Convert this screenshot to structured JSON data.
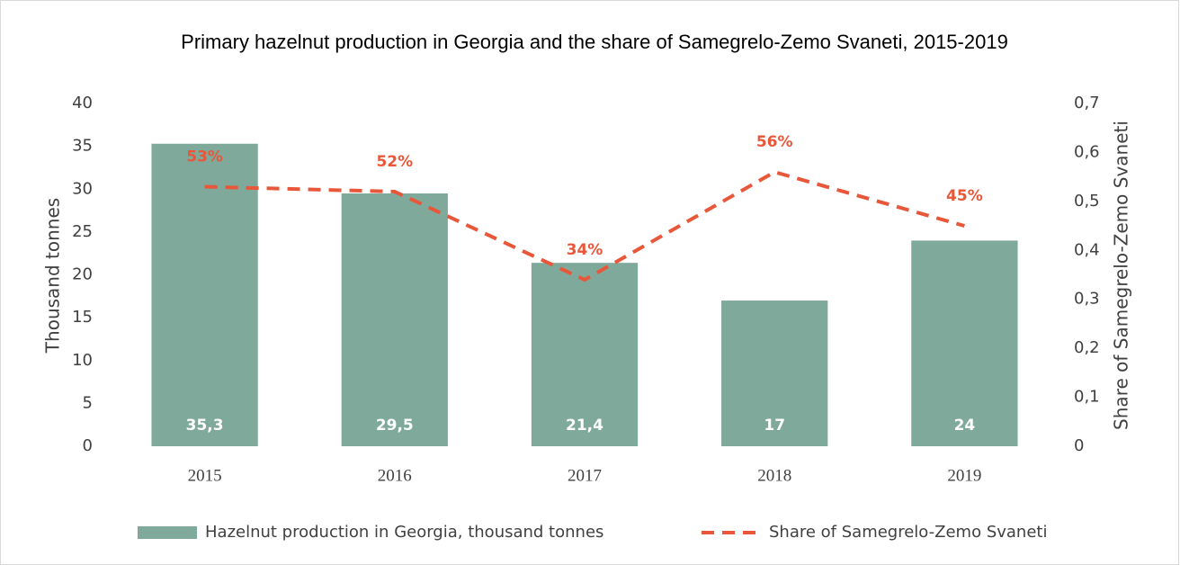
{
  "chart_data": {
    "type": "bar",
    "title": "Primary hazelnut production in Georgia and the share of Samegrelo-Zemo Svaneti, 2015-2019",
    "ylabel": "Thousand tonnes",
    "y2label": "Share of Samegrelo-Zemo Svaneti",
    "categories": [
      "2015",
      "2016",
      "2017",
      "2018",
      "2019"
    ],
    "series": [
      {
        "name": "Hazelnut production in Georgia, thousand tonnes",
        "type": "bar",
        "color": "#7fa99b",
        "values": [
          35.3,
          29.5,
          21.4,
          17,
          24
        ],
        "value_labels": [
          "35,3",
          "29,5",
          "21,4",
          "17",
          "24"
        ]
      },
      {
        "name": "Share of Samegrelo-Zemo Svaneti",
        "type": "line",
        "axis": "y2",
        "color": "#e8573a",
        "dashed": true,
        "values": [
          0.53,
          0.52,
          0.34,
          0.56,
          0.45
        ],
        "value_labels": [
          "53%",
          "52%",
          "34%",
          "56%",
          "45%"
        ]
      }
    ],
    "ylim": [
      0,
      40
    ],
    "yticks": [
      0,
      5,
      10,
      15,
      20,
      25,
      30,
      35,
      40
    ],
    "y2lim": [
      0,
      0.7
    ],
    "y2ticks": [
      0,
      {
        "value": 0.1,
        "label": "0,1"
      },
      {
        "value": 0.2,
        "label": "0,2"
      },
      {
        "value": 0.3,
        "label": "0,3"
      },
      {
        "value": 0.4,
        "label": "0,4"
      },
      {
        "value": 0.5,
        "label": "0,5"
      },
      {
        "value": 0.6,
        "label": "0,6"
      },
      {
        "value": 0.7,
        "label": "0,7"
      }
    ],
    "grid": false,
    "legend": "bottom"
  }
}
